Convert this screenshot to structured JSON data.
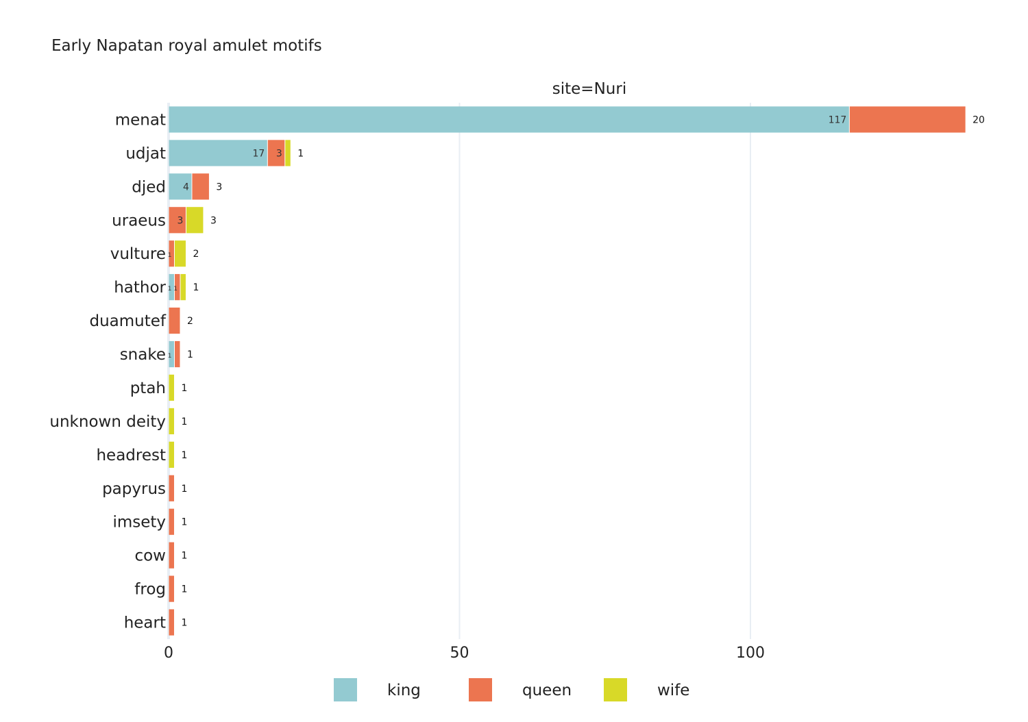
{
  "chart_data": {
    "type": "bar",
    "orientation": "horizontal",
    "barmode": "stack",
    "title": "Early Napatan royal amulet motifs",
    "facet_label": "site=Nuri",
    "xlabel": "",
    "ylabel": "",
    "xlim": [
      0,
      142
    ],
    "x_ticks": [
      0,
      50,
      100
    ],
    "grid": true,
    "legend_position": "bottom",
    "categories": [
      "menat",
      "udjat",
      "djed",
      "uraeus",
      "vulture",
      "hathor",
      "duamutef",
      "snake",
      "ptah",
      "unknown deity",
      "headrest",
      "papyrus",
      "imsety",
      "cow",
      "frog",
      "heart"
    ],
    "series": [
      {
        "name": "king",
        "color": "#93CAD1",
        "values": [
          117,
          17,
          4,
          0,
          0,
          1,
          0,
          1,
          0,
          0,
          0,
          0,
          0,
          0,
          0,
          0
        ]
      },
      {
        "name": "queen",
        "color": "#EC7550",
        "values": [
          20,
          3,
          3,
          3,
          1,
          1,
          2,
          1,
          0,
          0,
          0,
          1,
          1,
          1,
          1,
          1
        ]
      },
      {
        "name": "wife",
        "color": "#D8D928",
        "values": [
          0,
          1,
          0,
          3,
          2,
          1,
          0,
          0,
          1,
          1,
          1,
          0,
          0,
          0,
          0,
          0
        ]
      }
    ]
  }
}
